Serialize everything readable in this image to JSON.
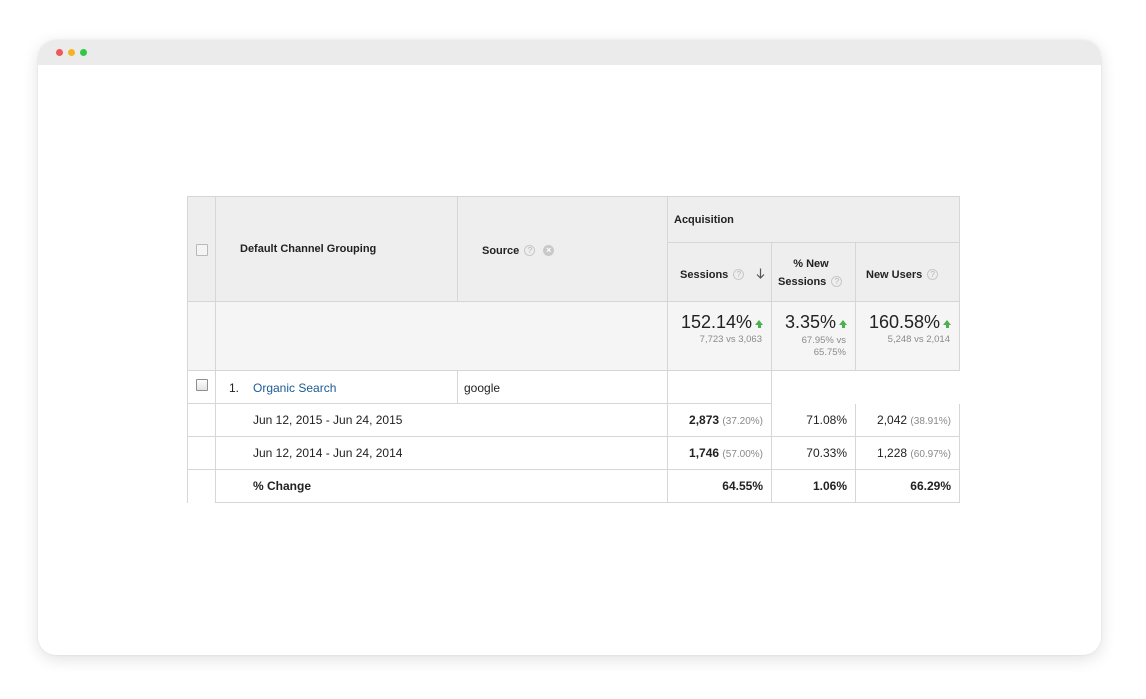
{
  "header": {
    "default_channel_grouping": "Default Channel Grouping",
    "source": "Source",
    "acquisition": "Acquisition",
    "sessions": "Sessions",
    "pct_new_sessions_line1": "% New",
    "pct_new_sessions_line2": "Sessions",
    "new_users": "New Users"
  },
  "totals": {
    "sessions_change": "152.14%",
    "sessions_compare": "7,723 vs 3,063",
    "pct_new_sessions_change": "3.35%",
    "pct_new_sessions_compare_line1": "67.95% vs",
    "pct_new_sessions_compare_line2": "65.75%",
    "new_users_change": "160.58%",
    "new_users_compare": "5,248 vs 2,014"
  },
  "row": {
    "index": "1.",
    "channel": "Organic Search",
    "source": "google"
  },
  "periods": [
    {
      "label": "Jun 12, 2015 - Jun 24, 2015",
      "sessions": "2,873",
      "sessions_pct": "(37.20%)",
      "pct_new_sessions": "71.08%",
      "new_users": "2,042",
      "new_users_pct": "(38.91%)"
    },
    {
      "label": "Jun 12, 2014 - Jun 24, 2014",
      "sessions": "1,746",
      "sessions_pct": "(57.00%)",
      "pct_new_sessions": "70.33%",
      "new_users": "1,228",
      "new_users_pct": "(60.97%)"
    }
  ],
  "change": {
    "label": "% Change",
    "sessions": "64.55%",
    "pct_new_sessions": "1.06%",
    "new_users": "66.29%"
  },
  "icons": {
    "help": "?",
    "remove": "×"
  },
  "colors": {
    "link": "#1a5b93",
    "up_arrow": "#4caf50",
    "header_bg": "#eeeeee"
  }
}
